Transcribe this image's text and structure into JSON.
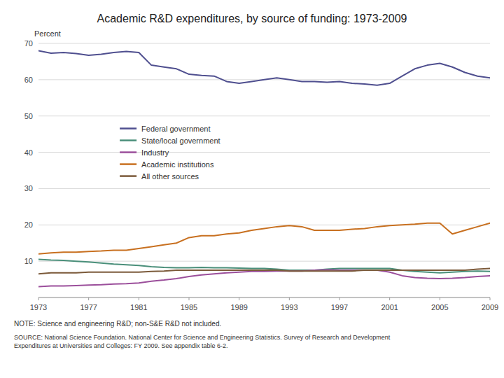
{
  "chart_data": {
    "type": "line",
    "title": "Academic R&D expenditures, by source of funding:  1973-2009",
    "ylabel": "Percent",
    "annotations": [
      "NOTE: Science and engineering R&D; non-S&E R&D not included.",
      "SOURCE: National Science Foundation. National Center for Science and Engineering Statistics. Survey of Research and Development\nExpenditures at Universities and Colleges: FY 2009. See appendix table 6-2."
    ],
    "xlim": [
      1973,
      2009
    ],
    "ylim": [
      0,
      70
    ],
    "xticks": [
      1973,
      1977,
      1981,
      1985,
      1989,
      1993,
      1997,
      2001,
      2005,
      2009
    ],
    "yticks": [
      {
        "value": 0,
        "label": null
      },
      10,
      20,
      30,
      40,
      50,
      60,
      70
    ],
    "grid": "y",
    "legend": "center left",
    "x": [
      1973,
      1974,
      1975,
      1976,
      1977,
      1978,
      1979,
      1980,
      1981,
      1982,
      1983,
      1984,
      1985,
      1986,
      1987,
      1988,
      1989,
      1990,
      1991,
      1992,
      1993,
      1994,
      1995,
      1996,
      1997,
      1998,
      1999,
      2000,
      2001,
      2002,
      2003,
      2004,
      2005,
      2006,
      2007,
      2008,
      2009
    ],
    "series": [
      {
        "name": "Federal government",
        "color": "#4F4F8F",
        "values": [
          68.0,
          67.3,
          67.5,
          67.2,
          66.7,
          67.0,
          67.5,
          67.8,
          67.5,
          64.0,
          63.5,
          63.0,
          61.5,
          61.2,
          61.0,
          59.5,
          59.0,
          59.5,
          60.0,
          60.5,
          60.0,
          59.5,
          59.5,
          59.3,
          59.5,
          59.0,
          58.8,
          58.5,
          59.0,
          61.0,
          63.0,
          64.0,
          64.5,
          63.5,
          62.0,
          61.0,
          60.5
        ]
      },
      {
        "name": "State/local government",
        "color": "#4A8F7A",
        "values": [
          10.5,
          10.3,
          10.2,
          10.0,
          9.8,
          9.5,
          9.2,
          9.0,
          8.8,
          8.5,
          8.3,
          8.2,
          8.2,
          8.3,
          8.2,
          8.2,
          8.1,
          8.0,
          8.0,
          7.8,
          7.5,
          7.5,
          7.5,
          7.8,
          8.0,
          8.0,
          8.0,
          8.0,
          8.0,
          7.5,
          7.2,
          7.0,
          6.8,
          7.0,
          7.2,
          7.3,
          7.2
        ]
      },
      {
        "name": "Industry",
        "color": "#9B4F9B",
        "values": [
          3.0,
          3.2,
          3.2,
          3.3,
          3.4,
          3.5,
          3.7,
          3.8,
          4.0,
          4.5,
          4.8,
          5.2,
          5.8,
          6.2,
          6.5,
          6.8,
          7.0,
          7.2,
          7.2,
          7.3,
          7.3,
          7.3,
          7.5,
          7.6,
          7.5,
          7.5,
          7.5,
          7.5,
          7.0,
          6.0,
          5.5,
          5.3,
          5.2,
          5.3,
          5.5,
          5.8,
          6.0
        ]
      },
      {
        "name": "Academic institutions",
        "color": "#C87020",
        "values": [
          12.0,
          12.3,
          12.5,
          12.5,
          12.7,
          12.8,
          13.0,
          13.0,
          13.5,
          14.0,
          14.5,
          15.0,
          16.5,
          17.0,
          17.0,
          17.5,
          17.8,
          18.5,
          19.0,
          19.5,
          19.8,
          19.5,
          18.5,
          18.5,
          18.5,
          18.8,
          19.0,
          19.5,
          19.8,
          20.0,
          20.2,
          20.5,
          20.5,
          17.5,
          18.5,
          19.5,
          20.5
        ]
      },
      {
        "name": "All other sources",
        "color": "#7B5A3A",
        "values": [
          6.5,
          6.8,
          6.8,
          6.8,
          7.0,
          7.0,
          7.0,
          7.0,
          7.0,
          7.2,
          7.3,
          7.5,
          7.5,
          7.5,
          7.5,
          7.5,
          7.5,
          7.5,
          7.5,
          7.5,
          7.3,
          7.3,
          7.3,
          7.3,
          7.3,
          7.3,
          7.5,
          7.5,
          7.5,
          7.5,
          7.5,
          7.5,
          7.5,
          7.5,
          7.5,
          7.8,
          8.0
        ]
      }
    ]
  }
}
